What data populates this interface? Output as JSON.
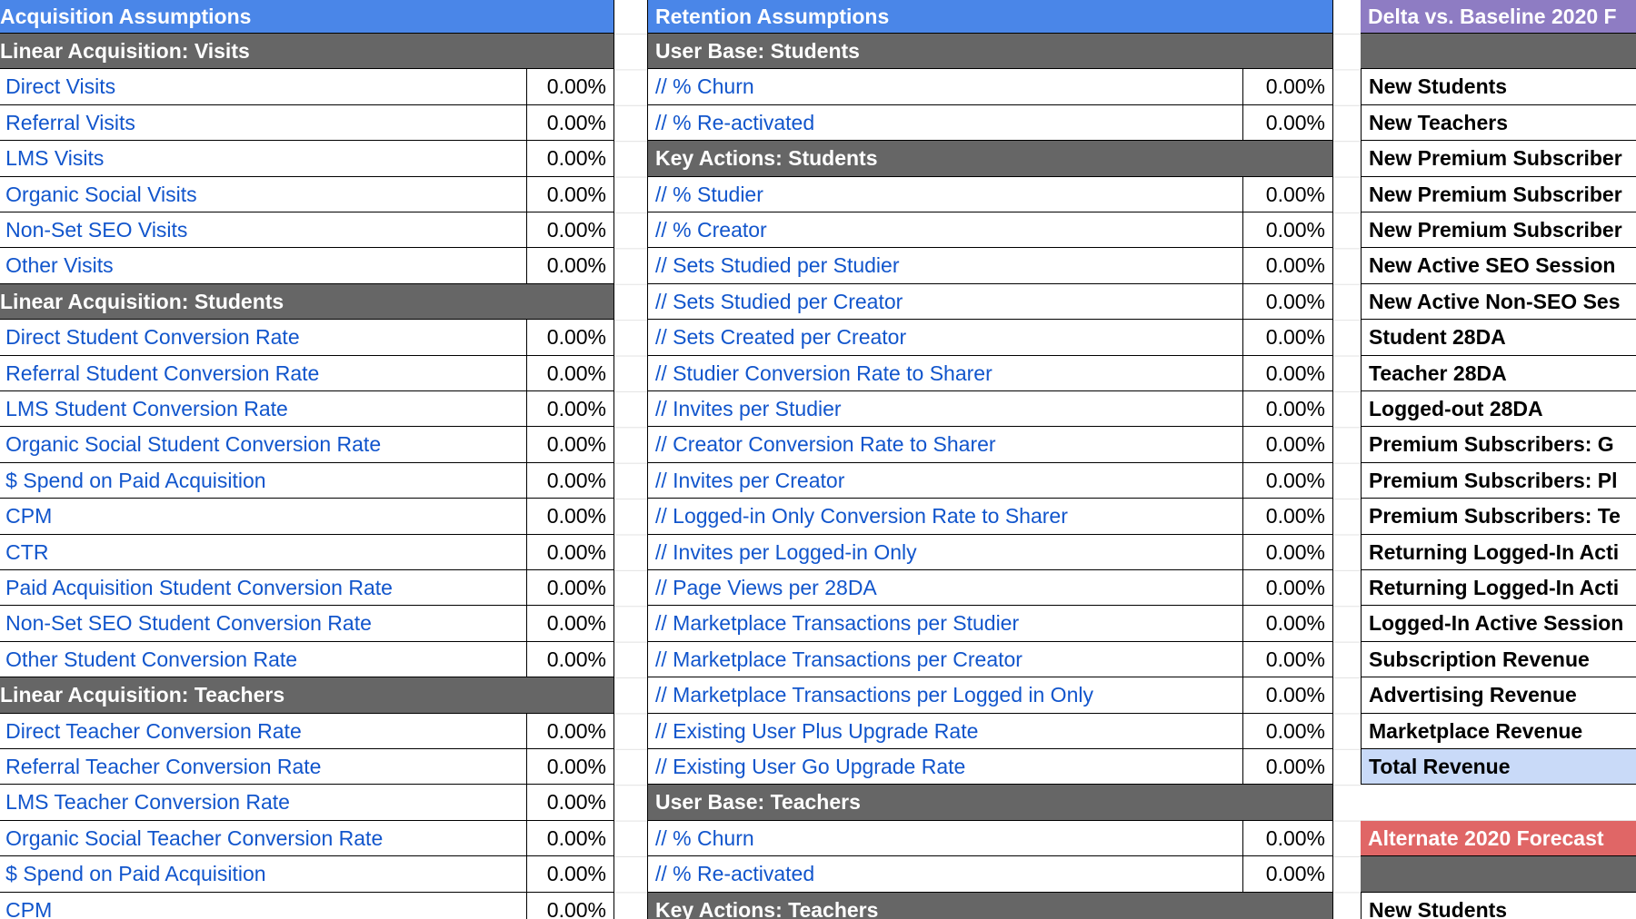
{
  "panels": [
    {
      "title": "Acquisition Assumptions",
      "rows": [
        {
          "kind": "section",
          "label": "Linear Acquisition: Visits"
        },
        {
          "kind": "item",
          "label": "// Direct Visits",
          "value": "0.00%"
        },
        {
          "kind": "item",
          "label": "// Referral Visits",
          "value": "0.00%"
        },
        {
          "kind": "item",
          "label": "// LMS Visits",
          "value": "0.00%"
        },
        {
          "kind": "item",
          "label": "// Organic Social Visits",
          "value": "0.00%"
        },
        {
          "kind": "item",
          "label": "// Non-Set SEO Visits",
          "value": "0.00%"
        },
        {
          "kind": "item",
          "label": "// Other Visits",
          "value": "0.00%"
        },
        {
          "kind": "section",
          "label": "Linear Acquisition: Students"
        },
        {
          "kind": "item",
          "label": "// Direct Student Conversion Rate",
          "value": "0.00%"
        },
        {
          "kind": "item",
          "label": "// Referral Student Conversion Rate",
          "value": "0.00%"
        },
        {
          "kind": "item",
          "label": "// LMS Student Conversion Rate",
          "value": "0.00%"
        },
        {
          "kind": "item",
          "label": "// Organic Social Student Conversion Rate",
          "value": "0.00%"
        },
        {
          "kind": "item",
          "label": "// $ Spend on Paid Acquisition",
          "value": "0.00%"
        },
        {
          "kind": "item",
          "label": "// CPM",
          "value": "0.00%"
        },
        {
          "kind": "item",
          "label": "// CTR",
          "value": "0.00%"
        },
        {
          "kind": "item",
          "label": "// Paid Acquisition Student Conversion Rate",
          "value": "0.00%"
        },
        {
          "kind": "item",
          "label": "// Non-Set SEO Student Conversion Rate",
          "value": "0.00%"
        },
        {
          "kind": "item",
          "label": "// Other Student Conversion Rate",
          "value": "0.00%"
        },
        {
          "kind": "section",
          "label": "Linear Acquisition: Teachers"
        },
        {
          "kind": "item",
          "label": "// Direct Teacher Conversion Rate",
          "value": "0.00%"
        },
        {
          "kind": "item",
          "label": "// Referral Teacher Conversion Rate",
          "value": "0.00%"
        },
        {
          "kind": "item",
          "label": "// LMS Teacher Conversion Rate",
          "value": "0.00%"
        },
        {
          "kind": "item",
          "label": "// Organic Social Teacher Conversion Rate",
          "value": "0.00%"
        },
        {
          "kind": "item",
          "label": "// $ Spend on Paid Acquisition",
          "value": "0.00%"
        },
        {
          "kind": "item",
          "label": "// CPM",
          "value": "0.00%"
        }
      ]
    },
    {
      "title": "Retention Assumptions",
      "rows": [
        {
          "kind": "section",
          "label": "User Base: Students"
        },
        {
          "kind": "item",
          "label": "// % Churn",
          "value": "0.00%"
        },
        {
          "kind": "item",
          "label": "// % Re-activated",
          "value": "0.00%"
        },
        {
          "kind": "section",
          "label": "Key Actions: Students"
        },
        {
          "kind": "item",
          "label": "// % Studier",
          "value": "0.00%"
        },
        {
          "kind": "item",
          "label": "// % Creator",
          "value": "0.00%"
        },
        {
          "kind": "item",
          "label": "// Sets Studied per Studier",
          "value": "0.00%"
        },
        {
          "kind": "item",
          "label": "// Sets Studied per Creator",
          "value": "0.00%"
        },
        {
          "kind": "item",
          "label": "// Sets Created per Creator",
          "value": "0.00%"
        },
        {
          "kind": "item",
          "label": "// Studier Conversion Rate to Sharer",
          "value": "0.00%"
        },
        {
          "kind": "item",
          "label": "// Invites per Studier",
          "value": "0.00%"
        },
        {
          "kind": "item",
          "label": "// Creator Conversion Rate to Sharer",
          "value": "0.00%"
        },
        {
          "kind": "item",
          "label": "// Invites per Creator",
          "value": "0.00%"
        },
        {
          "kind": "item",
          "label": "// Logged-in Only Conversion Rate to Sharer",
          "value": "0.00%"
        },
        {
          "kind": "item",
          "label": "// Invites per Logged-in Only",
          "value": "0.00%"
        },
        {
          "kind": "item",
          "label": "// Page Views per 28DA",
          "value": "0.00%"
        },
        {
          "kind": "item",
          "label": "// Marketplace Transactions per Studier",
          "value": "0.00%"
        },
        {
          "kind": "item",
          "label": "// Marketplace Transactions per Creator",
          "value": "0.00%"
        },
        {
          "kind": "item",
          "label": "// Marketplace Transactions per Logged in Only",
          "value": "0.00%"
        },
        {
          "kind": "item",
          "label": "// Existing User Plus Upgrade Rate",
          "value": "0.00%"
        },
        {
          "kind": "item",
          "label": "// Existing User Go Upgrade Rate",
          "value": "0.00%"
        },
        {
          "kind": "section",
          "label": "User Base: Teachers"
        },
        {
          "kind": "item",
          "label": "// % Churn",
          "value": "0.00%"
        },
        {
          "kind": "item",
          "label": "// % Re-activated",
          "value": "0.00%"
        },
        {
          "kind": "section",
          "label": "Key Actions: Teachers"
        }
      ]
    },
    {
      "title": "Delta vs. Baseline 2020 F",
      "rows": [
        {
          "kind": "section"
        },
        {
          "kind": "metric",
          "label": "New Students"
        },
        {
          "kind": "metric",
          "label": "New Teachers"
        },
        {
          "kind": "metric",
          "label": "New Premium Subscriber"
        },
        {
          "kind": "metric",
          "label": "New Premium Subscriber"
        },
        {
          "kind": "metric",
          "label": "New Premium Subscriber"
        },
        {
          "kind": "metric",
          "label": "New Active SEO Session"
        },
        {
          "kind": "metric",
          "label": "New Active Non-SEO Ses"
        },
        {
          "kind": "metric",
          "label": "Student 28DA"
        },
        {
          "kind": "metric",
          "label": "Teacher 28DA"
        },
        {
          "kind": "metric",
          "label": "Logged-out 28DA"
        },
        {
          "kind": "metric",
          "label": "Premium Subscribers: G"
        },
        {
          "kind": "metric",
          "label": "Premium Subscribers: Pl"
        },
        {
          "kind": "metric",
          "label": "Premium Subscribers: Te"
        },
        {
          "kind": "metric",
          "label": "Returning Logged-In Acti"
        },
        {
          "kind": "metric",
          "label": "Returning Logged-In Acti"
        },
        {
          "kind": "metric",
          "label": "Logged-In Active Session"
        },
        {
          "kind": "metric",
          "label": "Subscription Revenue"
        },
        {
          "kind": "metric",
          "label": "Advertising Revenue"
        },
        {
          "kind": "metric",
          "label": "Marketplace Revenue"
        },
        {
          "kind": "total",
          "label": "Total Revenue"
        },
        {
          "kind": "blank"
        },
        {
          "kind": "alt-header",
          "label": "Alternate 2020 Forecast"
        },
        {
          "kind": "section"
        },
        {
          "kind": "metric",
          "label": "New Students"
        }
      ]
    }
  ]
}
